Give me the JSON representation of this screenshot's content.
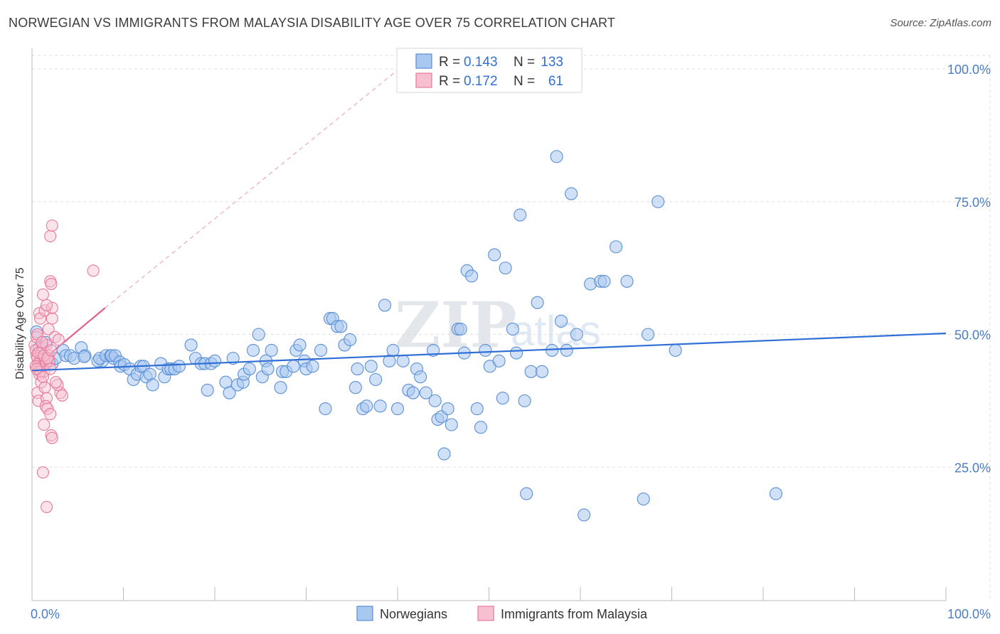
{
  "header": {
    "title": "NORWEGIAN VS IMMIGRANTS FROM MALAYSIA DISABILITY AGE OVER 75 CORRELATION CHART",
    "source": "Source: ZipAtlas.com"
  },
  "watermark": {
    "part1": "ZIP",
    "part2": "atlas"
  },
  "colors": {
    "blue_fill": "#a9c8f0",
    "blue_stroke": "#5b8fd6",
    "blue_line": "#2f6fd6",
    "pink_fill": "#f7c0d0",
    "pink_stroke": "#e8799b",
    "pink_line": "#e0608a",
    "axis_label": "#4a7cc7",
    "grid": "#dddddd"
  },
  "legend": {
    "rows": [
      {
        "r_label": "R =",
        "r_value": "0.143",
        "n_label": "N =",
        "n_value": "133"
      },
      {
        "r_label": "R =",
        "r_value": "0.172",
        "n_label": "N =",
        "n_value": "61"
      }
    ]
  },
  "chart_data": {
    "type": "scatter",
    "title": "NORWEGIAN VS IMMIGRANTS FROM MALAYSIA DISABILITY AGE OVER 75 CORRELATION CHART",
    "xlabel": "",
    "ylabel": "Disability Age Over 75",
    "xlim": [
      0,
      100
    ],
    "ylim": [
      0,
      105
    ],
    "x_tick_labels": [
      "0.0%",
      "100.0%"
    ],
    "y_ticks": [
      25,
      50,
      75,
      100
    ],
    "y_tick_labels": [
      "25.0%",
      "50.0%",
      "75.0%",
      "100.0%"
    ],
    "legend_position": "bottom",
    "series": [
      {
        "name": "Norwegians",
        "r": 0.143,
        "n": 133,
        "trend": {
          "x0": 0,
          "y0": 43.2,
          "x1": 100,
          "y1": 50.2
        },
        "points": [
          [
            0.5,
            50.5
          ],
          [
            0.8,
            47.5
          ],
          [
            1.0,
            45.5
          ],
          [
            1.2,
            46.0
          ],
          [
            1.5,
            48.5
          ],
          [
            1.8,
            45.0
          ],
          [
            2.2,
            44.5
          ],
          [
            2.6,
            45.5
          ],
          [
            3.4,
            47.0
          ],
          [
            3.7,
            46.0
          ],
          [
            4.2,
            46.0
          ],
          [
            4.6,
            45.5
          ],
          [
            5.4,
            47.5
          ],
          [
            5.8,
            46.0
          ],
          [
            5.7,
            45.8
          ],
          [
            7.7,
            45.0
          ],
          [
            7.2,
            45.0
          ],
          [
            7.4,
            45.5
          ],
          [
            8.1,
            46.0
          ],
          [
            8.6,
            46.0
          ],
          [
            8.9,
            45.5
          ],
          [
            8.7,
            46.0
          ],
          [
            9.1,
            46.0
          ],
          [
            9.6,
            44.8
          ],
          [
            9.7,
            44.0
          ],
          [
            10.1,
            44.3
          ],
          [
            10.7,
            43.5
          ],
          [
            11.1,
            41.5
          ],
          [
            11.5,
            42.5
          ],
          [
            11.9,
            44.0
          ],
          [
            12.2,
            44.0
          ],
          [
            12.5,
            42.0
          ],
          [
            12.9,
            42.5
          ],
          [
            13.2,
            40.5
          ],
          [
            14.1,
            44.5
          ],
          [
            14.5,
            42.0
          ],
          [
            14.9,
            43.5
          ],
          [
            15.2,
            43.5
          ],
          [
            15.6,
            43.5
          ],
          [
            16.1,
            44.0
          ],
          [
            17.4,
            48.0
          ],
          [
            17.9,
            45.5
          ],
          [
            18.5,
            44.5
          ],
          [
            18.9,
            44.5
          ],
          [
            19.2,
            39.5
          ],
          [
            19.6,
            44.5
          ],
          [
            20.0,
            45.0
          ],
          [
            21.2,
            41.0
          ],
          [
            21.6,
            39.0
          ],
          [
            22.0,
            45.5
          ],
          [
            22.5,
            40.5
          ],
          [
            23.1,
            41.0
          ],
          [
            23.2,
            42.5
          ],
          [
            23.8,
            43.5
          ],
          [
            24.2,
            47.0
          ],
          [
            24.8,
            50.0
          ],
          [
            25.2,
            42.0
          ],
          [
            25.6,
            45.0
          ],
          [
            25.8,
            43.5
          ],
          [
            26.2,
            47.0
          ],
          [
            27.2,
            40.0
          ],
          [
            27.4,
            43.0
          ],
          [
            27.8,
            43.0
          ],
          [
            28.6,
            44.0
          ],
          [
            28.9,
            47.0
          ],
          [
            29.3,
            48.0
          ],
          [
            29.8,
            45.0
          ],
          [
            30.0,
            43.5
          ],
          [
            30.7,
            44.0
          ],
          [
            31.6,
            47.0
          ],
          [
            32.1,
            36.0
          ],
          [
            32.6,
            53.0
          ],
          [
            32.9,
            53.0
          ],
          [
            33.4,
            51.5
          ],
          [
            33.8,
            51.5
          ],
          [
            34.2,
            48.0
          ],
          [
            34.8,
            49.0
          ],
          [
            35.4,
            40.0
          ],
          [
            35.6,
            43.5
          ],
          [
            36.2,
            36.0
          ],
          [
            36.6,
            36.5
          ],
          [
            37.1,
            44.0
          ],
          [
            37.6,
            41.5
          ],
          [
            38.1,
            36.5
          ],
          [
            38.6,
            55.5
          ],
          [
            39.1,
            45.0
          ],
          [
            39.5,
            47.0
          ],
          [
            40.0,
            36.0
          ],
          [
            40.6,
            45.0
          ],
          [
            41.2,
            39.5
          ],
          [
            41.7,
            39.0
          ],
          [
            42.1,
            43.5
          ],
          [
            42.5,
            42.0
          ],
          [
            43.1,
            39.0
          ],
          [
            43.9,
            47.0
          ],
          [
            44.1,
            37.5
          ],
          [
            44.4,
            34.0
          ],
          [
            44.8,
            34.5
          ],
          [
            45.1,
            27.5
          ],
          [
            45.5,
            36.0
          ],
          [
            45.9,
            33.0
          ],
          [
            46.6,
            51.0
          ],
          [
            46.9,
            51.0
          ],
          [
            47.3,
            46.5
          ],
          [
            47.6,
            62.0
          ],
          [
            48.1,
            61.0
          ],
          [
            48.7,
            36.0
          ],
          [
            49.1,
            32.5
          ],
          [
            49.6,
            47.0
          ],
          [
            50.1,
            44.0
          ],
          [
            50.6,
            65.0
          ],
          [
            51.1,
            45.0
          ],
          [
            51.5,
            38.0
          ],
          [
            51.8,
            62.5
          ],
          [
            52.6,
            51.0
          ],
          [
            53.0,
            46.5
          ],
          [
            53.4,
            72.5
          ],
          [
            53.9,
            37.5
          ],
          [
            54.1,
            20.0
          ],
          [
            54.6,
            43.0
          ],
          [
            55.3,
            56.0
          ],
          [
            55.8,
            43.0
          ],
          [
            56.9,
            47.0
          ],
          [
            58.5,
            47.0
          ],
          [
            57.4,
            83.5
          ],
          [
            57.9,
            52.5
          ],
          [
            59.0,
            76.5
          ],
          [
            59.6,
            50.0
          ],
          [
            60.4,
            16.0
          ],
          [
            61.1,
            59.5
          ],
          [
            62.2,
            60.0
          ],
          [
            62.6,
            60.0
          ],
          [
            63.9,
            66.5
          ],
          [
            65.1,
            60.0
          ],
          [
            66.9,
            19.0
          ],
          [
            67.4,
            50.0
          ],
          [
            68.5,
            75.0
          ],
          [
            70.4,
            47.0
          ],
          [
            81.4,
            20.0
          ]
        ]
      },
      {
        "name": "Immigrants from Malaysia",
        "r": 0.172,
        "n": 61,
        "trend": {
          "x0": 0,
          "y0": 43.5,
          "x1": 8,
          "y1": 55.0
        },
        "trend_extension": {
          "x0": 8,
          "y0": 55.0,
          "x1": 40.5,
          "y1": 100.5
        },
        "points": [
          [
            0.3,
            48.0
          ],
          [
            0.4,
            47.0
          ],
          [
            0.5,
            46.0
          ],
          [
            0.6,
            45.5
          ],
          [
            0.7,
            44.5
          ],
          [
            0.8,
            43.5
          ],
          [
            0.9,
            45.0
          ],
          [
            1.0,
            46.5
          ],
          [
            1.1,
            44.0
          ],
          [
            1.2,
            47.5
          ],
          [
            1.3,
            43.0
          ],
          [
            1.4,
            45.5
          ],
          [
            0.5,
            49.5
          ],
          [
            0.6,
            50.0
          ],
          [
            0.8,
            42.5
          ],
          [
            1.5,
            44.5
          ],
          [
            1.6,
            48.0
          ],
          [
            1.8,
            46.0
          ],
          [
            1.9,
            45.0
          ],
          [
            2.0,
            43.5
          ],
          [
            0.4,
            44.0
          ],
          [
            0.7,
            46.5
          ],
          [
            0.9,
            43.0
          ],
          [
            1.1,
            48.5
          ],
          [
            1.3,
            46.0
          ],
          [
            1.7,
            45.5
          ],
          [
            2.1,
            47.0
          ],
          [
            0.6,
            39.0
          ],
          [
            0.7,
            37.5
          ],
          [
            1.0,
            41.0
          ],
          [
            1.2,
            42.0
          ],
          [
            1.4,
            40.0
          ],
          [
            1.6,
            38.0
          ],
          [
            1.5,
            36.5
          ],
          [
            1.7,
            36.0
          ],
          [
            2.0,
            35.0
          ],
          [
            1.3,
            33.0
          ],
          [
            2.1,
            31.0
          ],
          [
            2.2,
            30.5
          ],
          [
            1.2,
            24.0
          ],
          [
            1.6,
            17.5
          ],
          [
            0.8,
            54.0
          ],
          [
            0.9,
            53.0
          ],
          [
            1.4,
            54.5
          ],
          [
            2.2,
            53.0
          ],
          [
            1.8,
            51.0
          ],
          [
            1.2,
            57.5
          ],
          [
            2.0,
            60.0
          ],
          [
            2.1,
            59.5
          ],
          [
            2.2,
            55.0
          ],
          [
            1.6,
            55.5
          ],
          [
            2.0,
            68.5
          ],
          [
            2.2,
            70.5
          ],
          [
            6.7,
            62.0
          ],
          [
            2.5,
            49.5
          ],
          [
            2.9,
            49.0
          ],
          [
            3.1,
            39.0
          ],
          [
            3.3,
            38.5
          ],
          [
            2.8,
            40.5
          ],
          [
            2.6,
            41.0
          ],
          [
            0.5,
            43.5
          ]
        ]
      }
    ]
  }
}
